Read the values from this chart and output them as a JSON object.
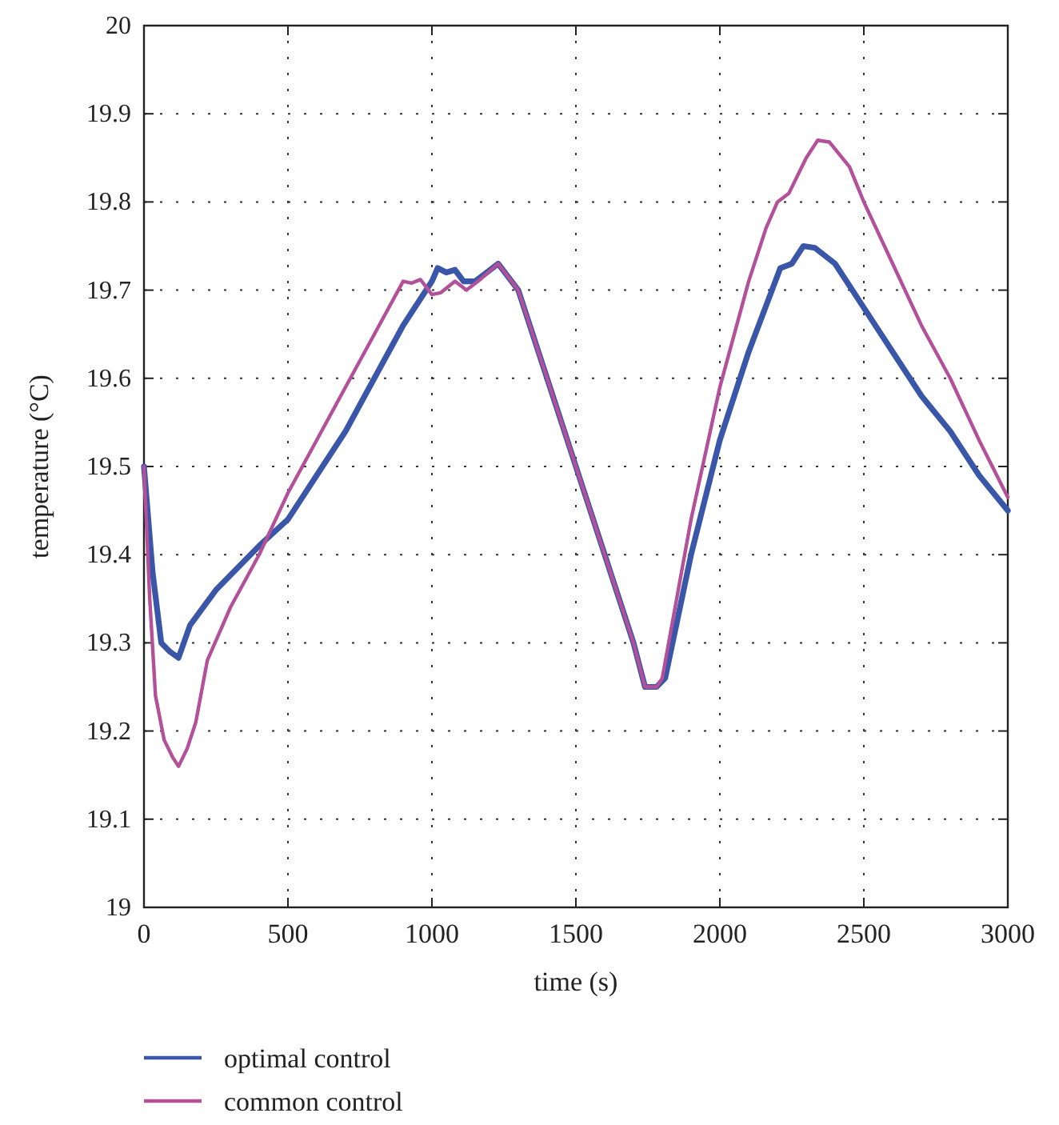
{
  "chart_data": {
    "type": "line",
    "xlabel": "time (s)",
    "ylabel": "temperature (°C)",
    "xlim": [
      0,
      3000
    ],
    "xticks": [
      0,
      500,
      1000,
      1500,
      2000,
      2500,
      3000
    ],
    "ylim": [
      19,
      20
    ],
    "yticks": [
      19,
      19.1,
      19.2,
      19.3,
      19.4,
      19.5,
      19.6,
      19.7,
      19.8,
      19.9,
      20
    ],
    "grid": true,
    "legend": "bottom left",
    "line_style": "solid",
    "marker": "none",
    "series": [
      {
        "name": "optimal control",
        "color": "#3a56a8",
        "x": [
          0,
          30,
          60,
          90,
          120,
          160,
          250,
          400,
          500,
          600,
          700,
          800,
          900,
          1000,
          1020,
          1050,
          1080,
          1110,
          1150,
          1230,
          1300,
          1400,
          1500,
          1600,
          1700,
          1740,
          1780,
          1810,
          1900,
          2000,
          2100,
          2210,
          2250,
          2290,
          2330,
          2400,
          2500,
          2600,
          2700,
          2800,
          2900,
          3000
        ],
        "values": [
          19.5,
          19.38,
          19.3,
          19.29,
          19.283,
          19.32,
          19.36,
          19.41,
          19.44,
          19.49,
          19.54,
          19.6,
          19.66,
          19.71,
          19.725,
          19.72,
          19.723,
          19.71,
          19.71,
          19.73,
          19.7,
          19.6,
          19.5,
          19.4,
          19.3,
          19.25,
          19.25,
          19.26,
          19.4,
          19.53,
          19.63,
          19.725,
          19.73,
          19.75,
          19.748,
          19.73,
          19.68,
          19.63,
          19.58,
          19.54,
          19.49,
          19.45
        ]
      },
      {
        "name": "common control",
        "color": "#b2509a",
        "x": [
          0,
          20,
          40,
          70,
          100,
          120,
          150,
          180,
          220,
          300,
          400,
          500,
          600,
          700,
          800,
          900,
          930,
          960,
          1000,
          1030,
          1080,
          1120,
          1160,
          1230,
          1300,
          1400,
          1500,
          1600,
          1700,
          1740,
          1780,
          1800,
          1900,
          2000,
          2100,
          2160,
          2200,
          2240,
          2300,
          2340,
          2380,
          2450,
          2500,
          2600,
          2700,
          2800,
          2900,
          3000
        ],
        "values": [
          19.5,
          19.35,
          19.24,
          19.19,
          19.17,
          19.16,
          19.18,
          19.21,
          19.28,
          19.34,
          19.4,
          19.47,
          19.53,
          19.59,
          19.65,
          19.71,
          19.708,
          19.712,
          19.695,
          19.697,
          19.71,
          19.7,
          19.71,
          19.73,
          19.7,
          19.6,
          19.5,
          19.4,
          19.3,
          19.25,
          19.25,
          19.26,
          19.44,
          19.59,
          19.71,
          19.77,
          19.8,
          19.81,
          19.85,
          19.87,
          19.868,
          19.84,
          19.8,
          19.73,
          19.66,
          19.6,
          19.53,
          19.465
        ]
      }
    ]
  }
}
